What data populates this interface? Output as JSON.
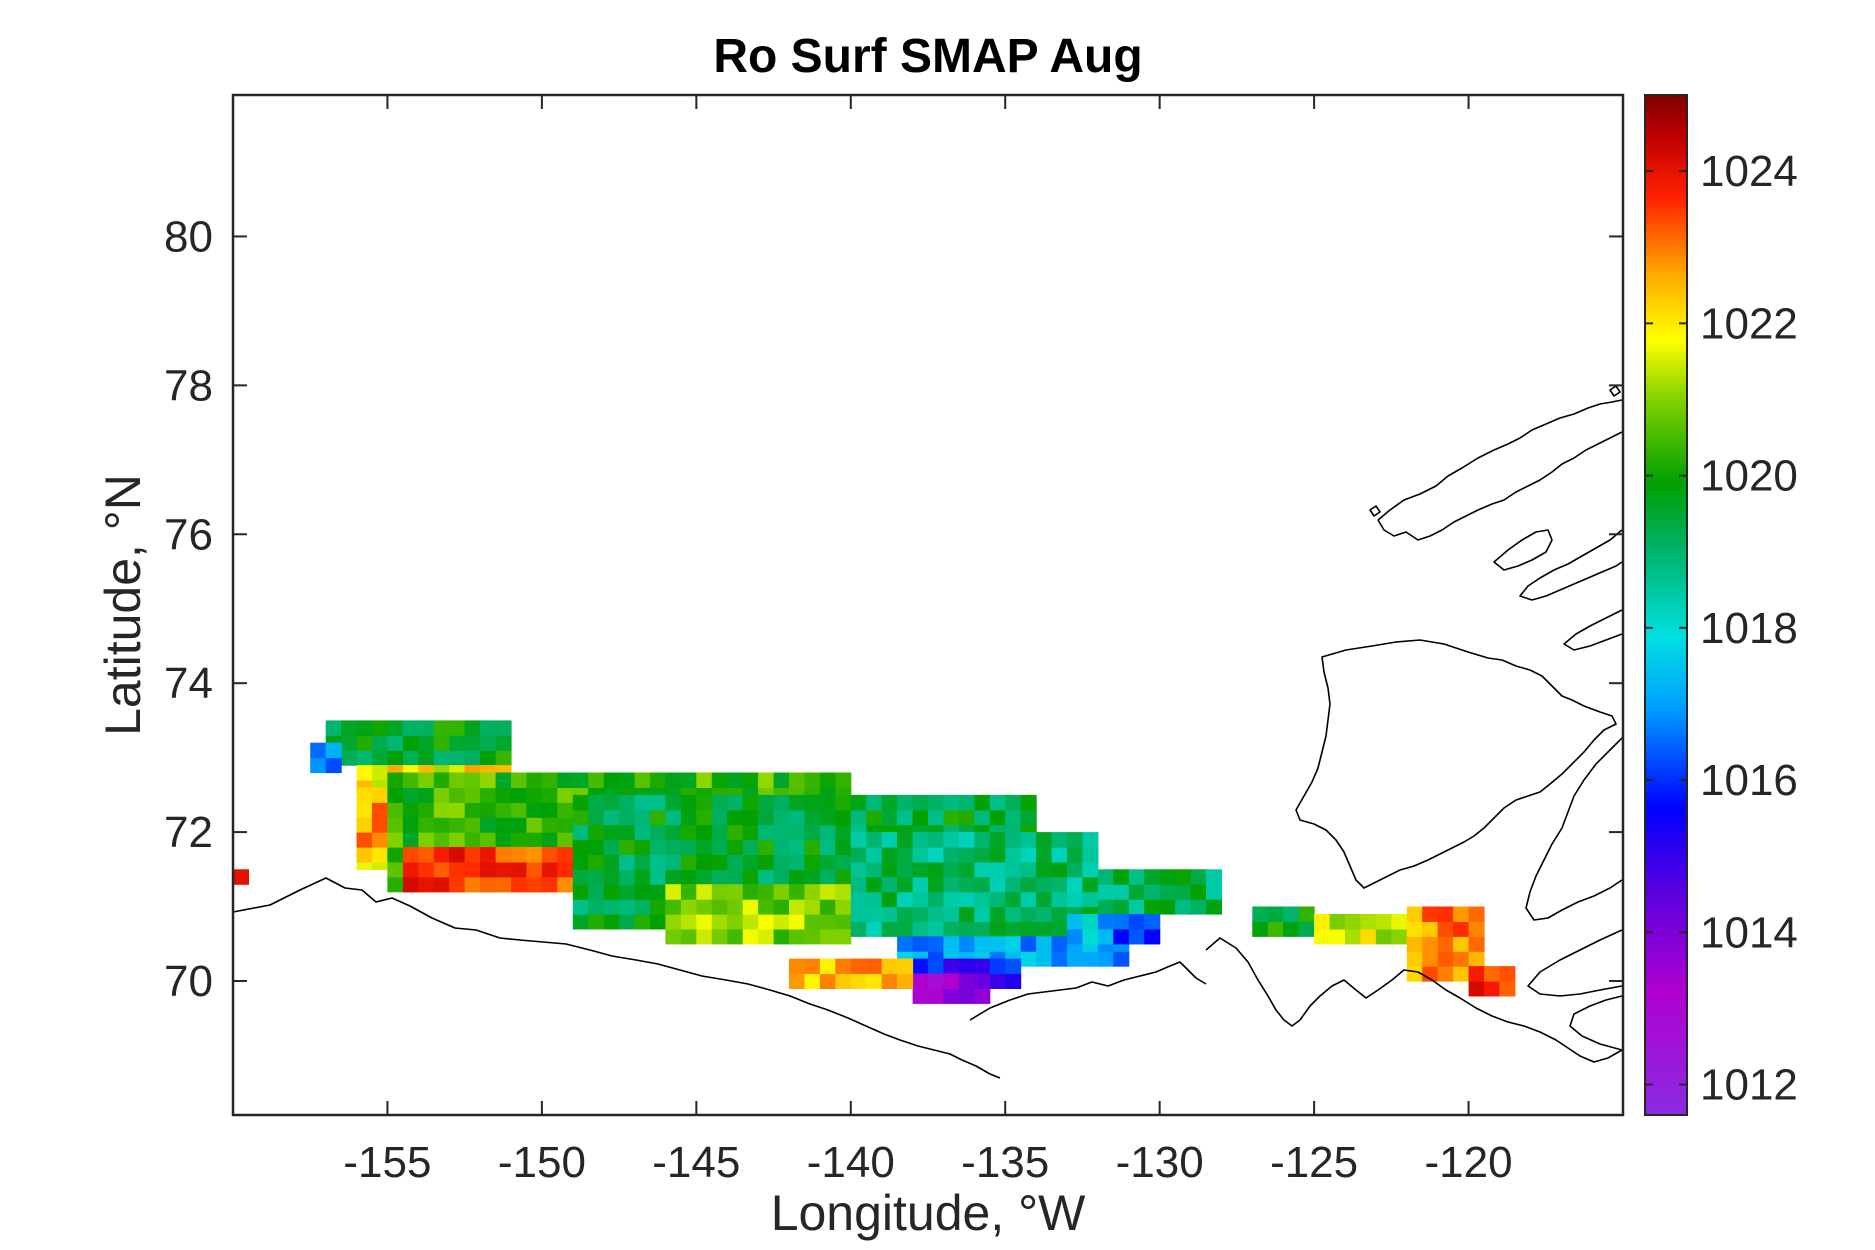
{
  "chart_data": {
    "type": "heatmap",
    "title": "Ro Surf SMAP Aug",
    "xlabel": "Longitude, °W",
    "ylabel": "Latitude, °N",
    "xlim": [
      -160,
      -115
    ],
    "ylim": [
      68.2,
      81.9
    ],
    "xticks": [
      -155,
      -150,
      -145,
      -140,
      -135,
      -130,
      -125,
      -120
    ],
    "xtick_labels": [
      "-155",
      "-150",
      "-145",
      "-140",
      "-135",
      "-130",
      "-125",
      "-120"
    ],
    "yticks": [
      70,
      72,
      74,
      76,
      78,
      80
    ],
    "ytick_labels": [
      "70",
      "72",
      "74",
      "76",
      "78",
      "80"
    ],
    "colorbar": {
      "range": [
        1011.6,
        1025
      ],
      "ticks": [
        1012,
        1014,
        1016,
        1018,
        1020,
        1022,
        1024
      ],
      "tick_labels": [
        "1012",
        "1014",
        "1016",
        "1018",
        "1020",
        "1022",
        "1024"
      ],
      "colormap": "jet-like (violet-blue-cyan-green-yellow-orange-red-darkred)"
    },
    "grid": false,
    "regions": [
      {
        "lon": [
          -157,
          -151
        ],
        "lat": [
          72.9,
          73.4
        ],
        "value": 1019.6
      },
      {
        "lon": [
          -157.5,
          -156.5
        ],
        "lat": [
          72.8,
          73.2
        ],
        "value": 1016.8
      },
      {
        "lon": [
          -156,
          -151
        ],
        "lat": [
          71.5,
          72.9
        ],
        "value": 1021.9
      },
      {
        "lon": [
          -156,
          -153
        ],
        "lat": [
          71.6,
          72.6
        ],
        "value": 1022.8
      },
      {
        "lon": [
          -155,
          -140
        ],
        "lat": [
          71.2,
          72.8
        ],
        "value": 1020.3
      },
      {
        "lon": [
          -154.5,
          -149
        ],
        "lat": [
          71.2,
          71.7
        ],
        "value": 1023.6
      },
      {
        "lon": [
          -149,
          -134
        ],
        "lat": [
          70.7,
          72.5
        ],
        "value": 1019.5
      },
      {
        "lon": [
          -146,
          -140
        ],
        "lat": [
          70.5,
          71.2
        ],
        "value": 1021.0
      },
      {
        "lon": [
          -140,
          -132
        ],
        "lat": [
          70.6,
          72.0
        ],
        "value": 1019.0
      },
      {
        "lon": [
          -132,
          -128
        ],
        "lat": [
          70.9,
          71.5
        ],
        "value": 1019.2
      },
      {
        "lon": [
          -138.5,
          -131
        ],
        "lat": [
          70.2,
          70.6
        ],
        "value": 1017.0
      },
      {
        "lon": [
          -138,
          -134.5
        ],
        "lat": [
          69.9,
          70.3
        ],
        "value": 1015.6
      },
      {
        "lon": [
          -138,
          -135.5
        ],
        "lat": [
          69.7,
          70.1
        ],
        "value": 1013.6
      },
      {
        "lon": [
          -133,
          -130
        ],
        "lat": [
          70.5,
          70.8
        ],
        "value": 1017.4
      },
      {
        "lon": [
          -131.5,
          -130
        ],
        "lat": [
          70.5,
          70.8
        ],
        "value": 1016.0
      },
      {
        "lon": [
          -142,
          -138
        ],
        "lat": [
          69.9,
          70.2
        ],
        "value": 1022.5
      },
      {
        "lon": [
          -160,
          -159.5
        ],
        "lat": [
          71.3,
          71.5
        ],
        "value": 1023.5
      },
      {
        "lon": [
          -127,
          -125
        ],
        "lat": [
          70.6,
          71.0
        ],
        "value": 1019.8
      },
      {
        "lon": [
          -125,
          -121
        ],
        "lat": [
          70.5,
          70.9
        ],
        "value": 1021.6
      },
      {
        "lon": [
          -122,
          -119.5
        ],
        "lat": [
          70.0,
          70.9
        ],
        "value": 1022.8
      },
      {
        "lon": [
          -120,
          -118.5
        ],
        "lat": [
          69.8,
          70.1
        ],
        "value": 1023.8
      }
    ]
  }
}
